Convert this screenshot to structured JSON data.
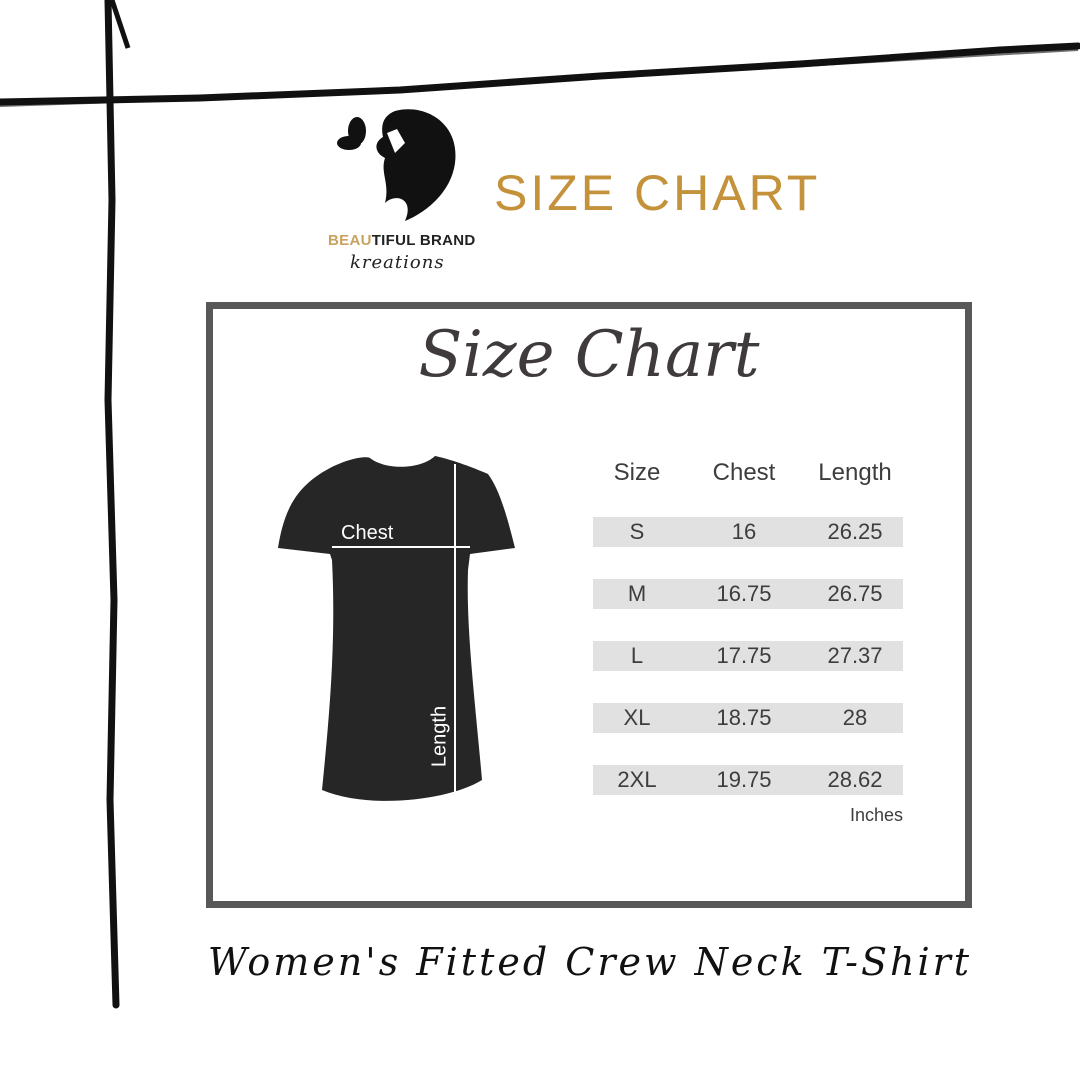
{
  "logo": {
    "brand_gold": "BEAU",
    "brand_rest_1": "BE",
    "brand_line": "BEAUTIFUL BRAND",
    "brand_part_a": "BE",
    "brand_part_b": "AU",
    "brand_part_c": "TIFUL BRAND",
    "sub": "kreations"
  },
  "header": {
    "title": "SIZE CHART"
  },
  "card": {
    "title": "Size Chart",
    "chest_label": "Chest",
    "length_label": "Length"
  },
  "table": {
    "columns": [
      "Size",
      "Chest",
      "Length"
    ],
    "rows": [
      [
        "S",
        "16",
        "26.25"
      ],
      [
        "M",
        "16.75",
        "26.75"
      ],
      [
        "L",
        "17.75",
        "27.37"
      ],
      [
        "XL",
        "18.75",
        "28"
      ],
      [
        "2XL",
        "19.75",
        "28.62"
      ]
    ],
    "unit": "Inches"
  },
  "footer": {
    "product": "Women's Fitted Crew Neck T-Shirt"
  },
  "colors": {
    "gold": "#c4923a",
    "frame": "#585858",
    "row_bg": "#e1e1e1",
    "text": "#3d3d3d"
  }
}
